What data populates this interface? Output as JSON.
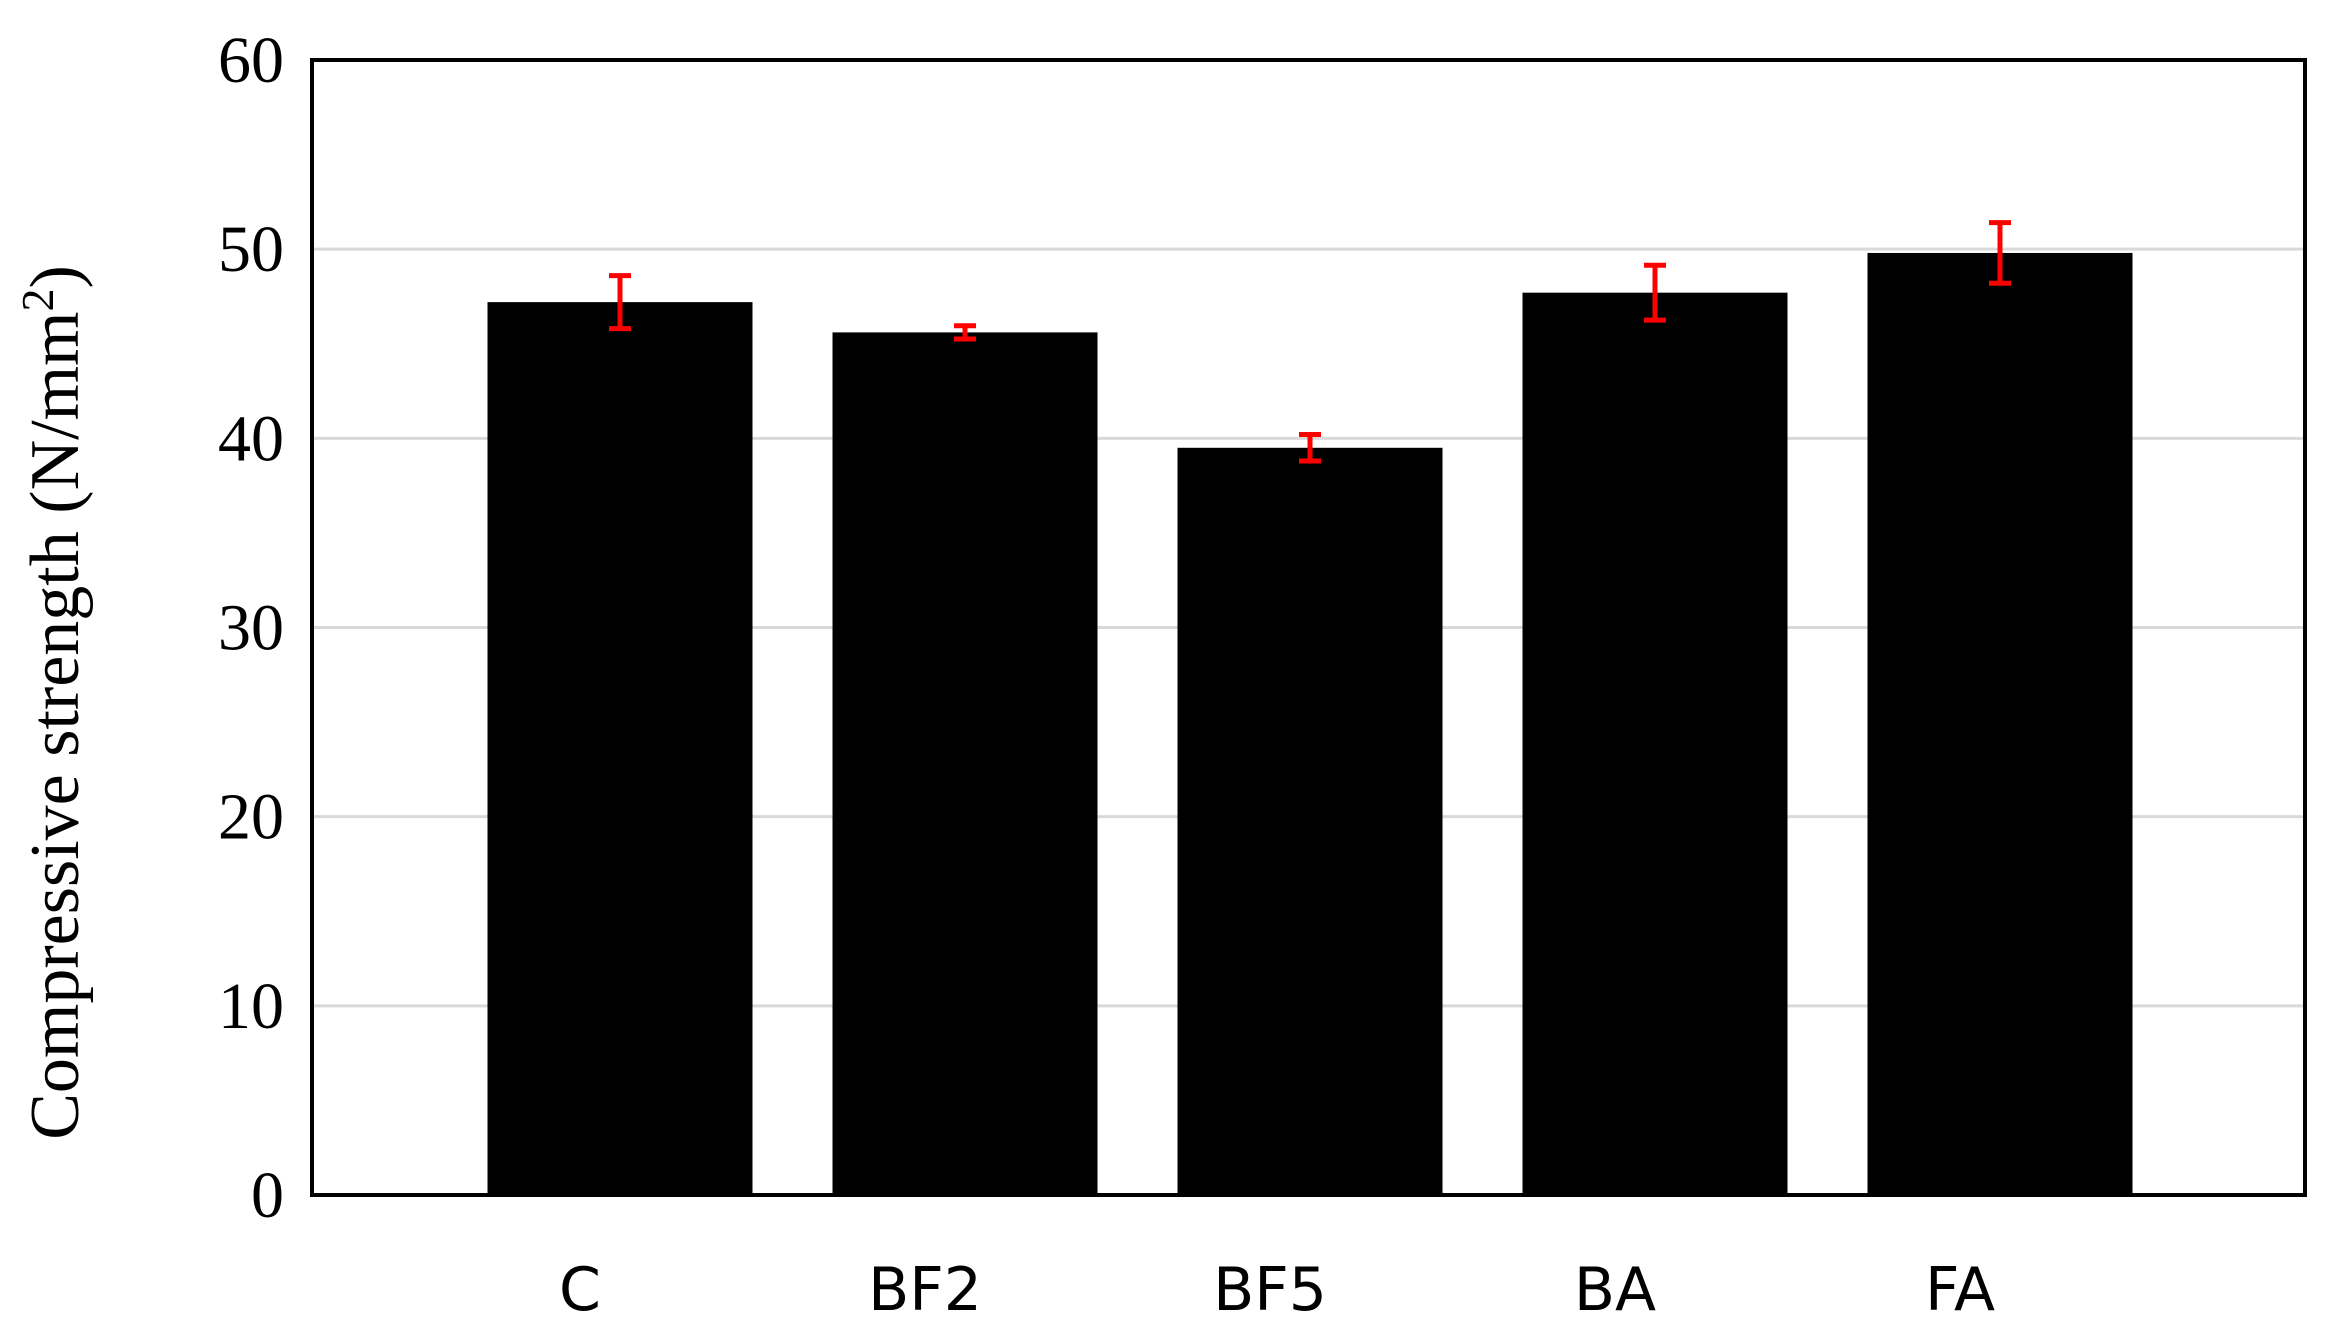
{
  "chart_data": {
    "type": "bar",
    "title": "",
    "xlabel": "",
    "ylabel": "Compressive strength (N/mm",
    "ylabel_superscript": "2",
    "ylabel_close": ")",
    "categories": [
      "C",
      "BF2",
      "BF5",
      "BA",
      "FA"
    ],
    "series": [
      {
        "values": [
          47.2,
          45.6,
          39.5,
          47.7,
          49.8
        ],
        "errors": [
          1.4,
          0.35,
          0.7,
          1.45,
          1.6
        ]
      }
    ],
    "ylim": [
      0,
      60
    ],
    "yticks": [
      0,
      10,
      20,
      30,
      40,
      50,
      60
    ],
    "ytick_labels": [
      "0",
      "10",
      "20",
      "30",
      "40",
      "50",
      "60"
    ],
    "grid": true,
    "legend": "none",
    "colors": {
      "bar": "#000000",
      "error_bar": "#ff0000",
      "grid": "#d9d9d9",
      "frame": "#000000"
    }
  }
}
